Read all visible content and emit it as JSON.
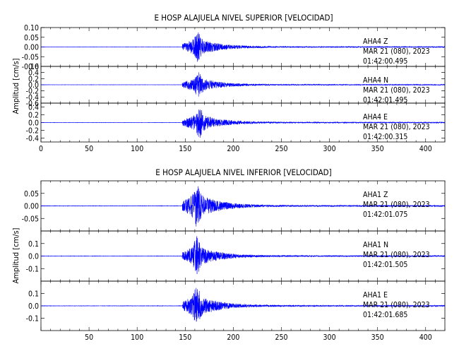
{
  "chart_data": [
    {
      "type": "line",
      "title": "E HOSP ALAJUELA NIVEL SUPERIOR [VELOCIDAD]",
      "ylabel": "Amplitud [cm/s]",
      "xlim": [
        0,
        420
      ],
      "xticks": [
        0,
        50,
        100,
        150,
        200,
        250,
        300,
        350,
        400
      ],
      "line_color": "#0000ff",
      "traces": [
        {
          "station": "AHA4",
          "component": "Z",
          "date": "MAR 21 (080), 2023",
          "time": "01:42:00.495",
          "ylim": [
            -0.1,
            0.1
          ],
          "yticks": [
            "0.10",
            "0.05",
            "0.00",
            "-0.05",
            "-0.10"
          ],
          "onset_s": 147,
          "peak_s": 163,
          "peak_amplitude": 0.085
        },
        {
          "station": "AHA4",
          "component": "N",
          "date": "MAR 21 (080), 2023",
          "time": "01:42:01.495",
          "ylim": [
            -0.6,
            0.6
          ],
          "yticks": [
            "0.6",
            "0.4",
            "0.2",
            "0.0",
            "-0.2",
            "-0.4",
            "-0.6"
          ],
          "onset_s": 147,
          "peak_s": 164,
          "peak_amplitude": 0.45
        },
        {
          "station": "AHA4",
          "component": "E",
          "date": "MAR 21 (080), 2023",
          "time": "01:42:00.315",
          "ylim": [
            -0.5,
            0.5
          ],
          "yticks": [
            "0.4",
            "0.2",
            "0.0",
            "-0.2",
            "-0.4"
          ],
          "onset_s": 147,
          "peak_s": 165,
          "peak_amplitude": 0.42
        }
      ]
    },
    {
      "type": "line",
      "title": "E HOSP ALAJUELA NIVEL INFERIOR [VELOCIDAD]",
      "ylabel": "Amplitud [cm/s]",
      "xlim": [
        0,
        420
      ],
      "xticks": [
        50,
        100,
        150,
        200,
        250,
        300,
        350,
        400
      ],
      "line_color": "#0000ff",
      "traces": [
        {
          "station": "AHA1",
          "component": "Z",
          "date": "MAR 21 (080), 2023",
          "time": "01:42:01.075",
          "ylim": [
            -0.1,
            0.1
          ],
          "yticks": [
            "0.05",
            "0.00",
            "-0.05"
          ],
          "onset_s": 147,
          "peak_s": 162,
          "peak_amplitude": 0.095
        },
        {
          "station": "AHA1",
          "component": "N",
          "date": "MAR 21 (080), 2023",
          "time": "01:42:01.505",
          "ylim": [
            -0.2,
            0.2
          ],
          "yticks": [
            "0.1",
            "0.0",
            "-0.1"
          ],
          "onset_s": 147,
          "peak_s": 162,
          "peak_amplitude": 0.16
        },
        {
          "station": "AHA1",
          "component": "E",
          "date": "MAR 21 (080), 2023",
          "time": "01:42:01.685",
          "ylim": [
            -0.2,
            0.2
          ],
          "yticks": [
            "0.1",
            "0.0",
            "-0.1"
          ],
          "onset_s": 147,
          "peak_s": 162,
          "peak_amplitude": 0.17
        }
      ]
    }
  ]
}
